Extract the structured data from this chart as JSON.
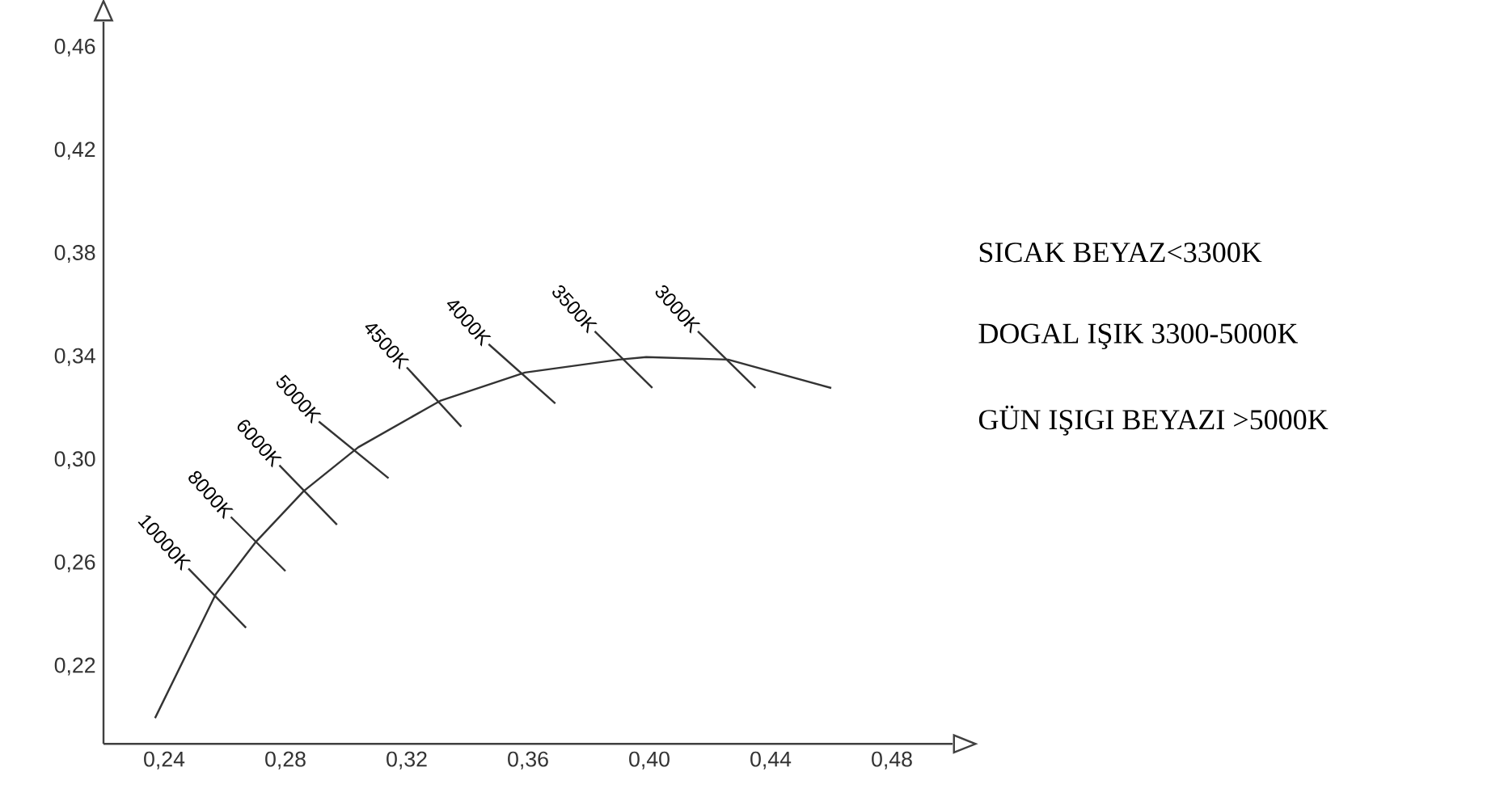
{
  "chart_data": {
    "type": "line",
    "xlim": [
      0.22,
      0.5
    ],
    "ylim": [
      0.19,
      0.47
    ],
    "xticks": [
      {
        "value": 0.24,
        "label": "0,24"
      },
      {
        "value": 0.28,
        "label": "0,28"
      },
      {
        "value": 0.32,
        "label": "0,32"
      },
      {
        "value": 0.36,
        "label": "0,36"
      },
      {
        "value": 0.4,
        "label": "0,40"
      },
      {
        "value": 0.44,
        "label": "0,44"
      },
      {
        "value": 0.48,
        "label": "0,48"
      }
    ],
    "yticks": [
      {
        "value": 0.22,
        "label": "0,22"
      },
      {
        "value": 0.26,
        "label": "0,26"
      },
      {
        "value": 0.3,
        "label": "0,30"
      },
      {
        "value": 0.34,
        "label": "0,34"
      },
      {
        "value": 0.38,
        "label": "0,38"
      },
      {
        "value": 0.42,
        "label": "0,42"
      },
      {
        "value": 0.46,
        "label": "0,46"
      }
    ],
    "marker": "none",
    "line_style": "solid",
    "series": [
      {
        "color": "#333333",
        "x": [
          0.237,
          0.257,
          0.27,
          0.286,
          0.304,
          0.331,
          0.359,
          0.39,
          0.399,
          0.426,
          0.46
        ],
        "values": [
          0.2,
          0.248,
          0.268,
          0.288,
          0.305,
          0.323,
          0.334,
          0.339,
          0.34,
          0.339,
          0.328
        ]
      },
      {
        "name": "10000K",
        "color": "#333333",
        "x": [
          0.248,
          0.267
        ],
        "values": [
          0.258,
          0.235
        ]
      },
      {
        "name": "8000K",
        "color": "#333333",
        "x": [
          0.262,
          0.28
        ],
        "values": [
          0.278,
          0.257
        ]
      },
      {
        "name": "6000K",
        "color": "#333333",
        "x": [
          0.278,
          0.297
        ],
        "values": [
          0.298,
          0.275
        ]
      },
      {
        "name": "5000K",
        "color": "#333333",
        "x": [
          0.291,
          0.314
        ],
        "values": [
          0.315,
          0.293
        ]
      },
      {
        "name": "4500K",
        "color": "#333333",
        "x": [
          0.32,
          0.338
        ],
        "values": [
          0.336,
          0.313
        ]
      },
      {
        "name": "4000K",
        "color": "#333333",
        "x": [
          0.347,
          0.369
        ],
        "values": [
          0.345,
          0.322
        ]
      },
      {
        "name": "3500K",
        "color": "#333333",
        "x": [
          0.382,
          0.401
        ],
        "values": [
          0.35,
          0.328
        ]
      },
      {
        "name": "3000K",
        "color": "#333333",
        "x": [
          0.416,
          0.435
        ],
        "values": [
          0.35,
          0.328
        ]
      }
    ],
    "annotations": [
      "SICAK BEYAZ<3300K",
      "DOGAL IŞIK 3300-5000K",
      "GÜN IŞIGI BEYAZI >5000K"
    ]
  }
}
